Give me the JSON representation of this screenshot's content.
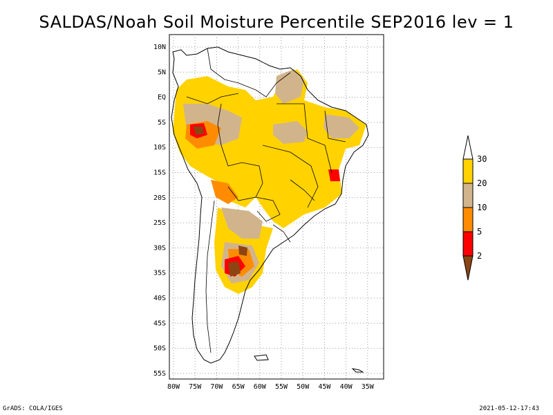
{
  "title": "SALDAS/Noah Soil Moisture Percentile SEP2016 lev = 1",
  "lat_ticks": [
    "10N",
    "5N",
    "EQ",
    "5S",
    "10S",
    "15S",
    "20S",
    "25S",
    "30S",
    "35S",
    "40S",
    "45S",
    "50S",
    "55S"
  ],
  "lon_ticks": [
    "80W",
    "75W",
    "70W",
    "65W",
    "60W",
    "55W",
    "50W",
    "45W",
    "40W",
    "35W"
  ],
  "colorbar": {
    "labels": [
      "30",
      "20",
      "10",
      "5",
      "2"
    ],
    "colors": {
      "above_30": "#ffffff",
      "20_30": "#ffd200",
      "10_20": "#d2b48c",
      "5_10": "#ff8c00",
      "2_5": "#ff0000",
      "below_2": "#8b4513"
    }
  },
  "footer": {
    "left": "GrADS: COLA/IGES",
    "right": "2021-05-12-17:43"
  }
}
